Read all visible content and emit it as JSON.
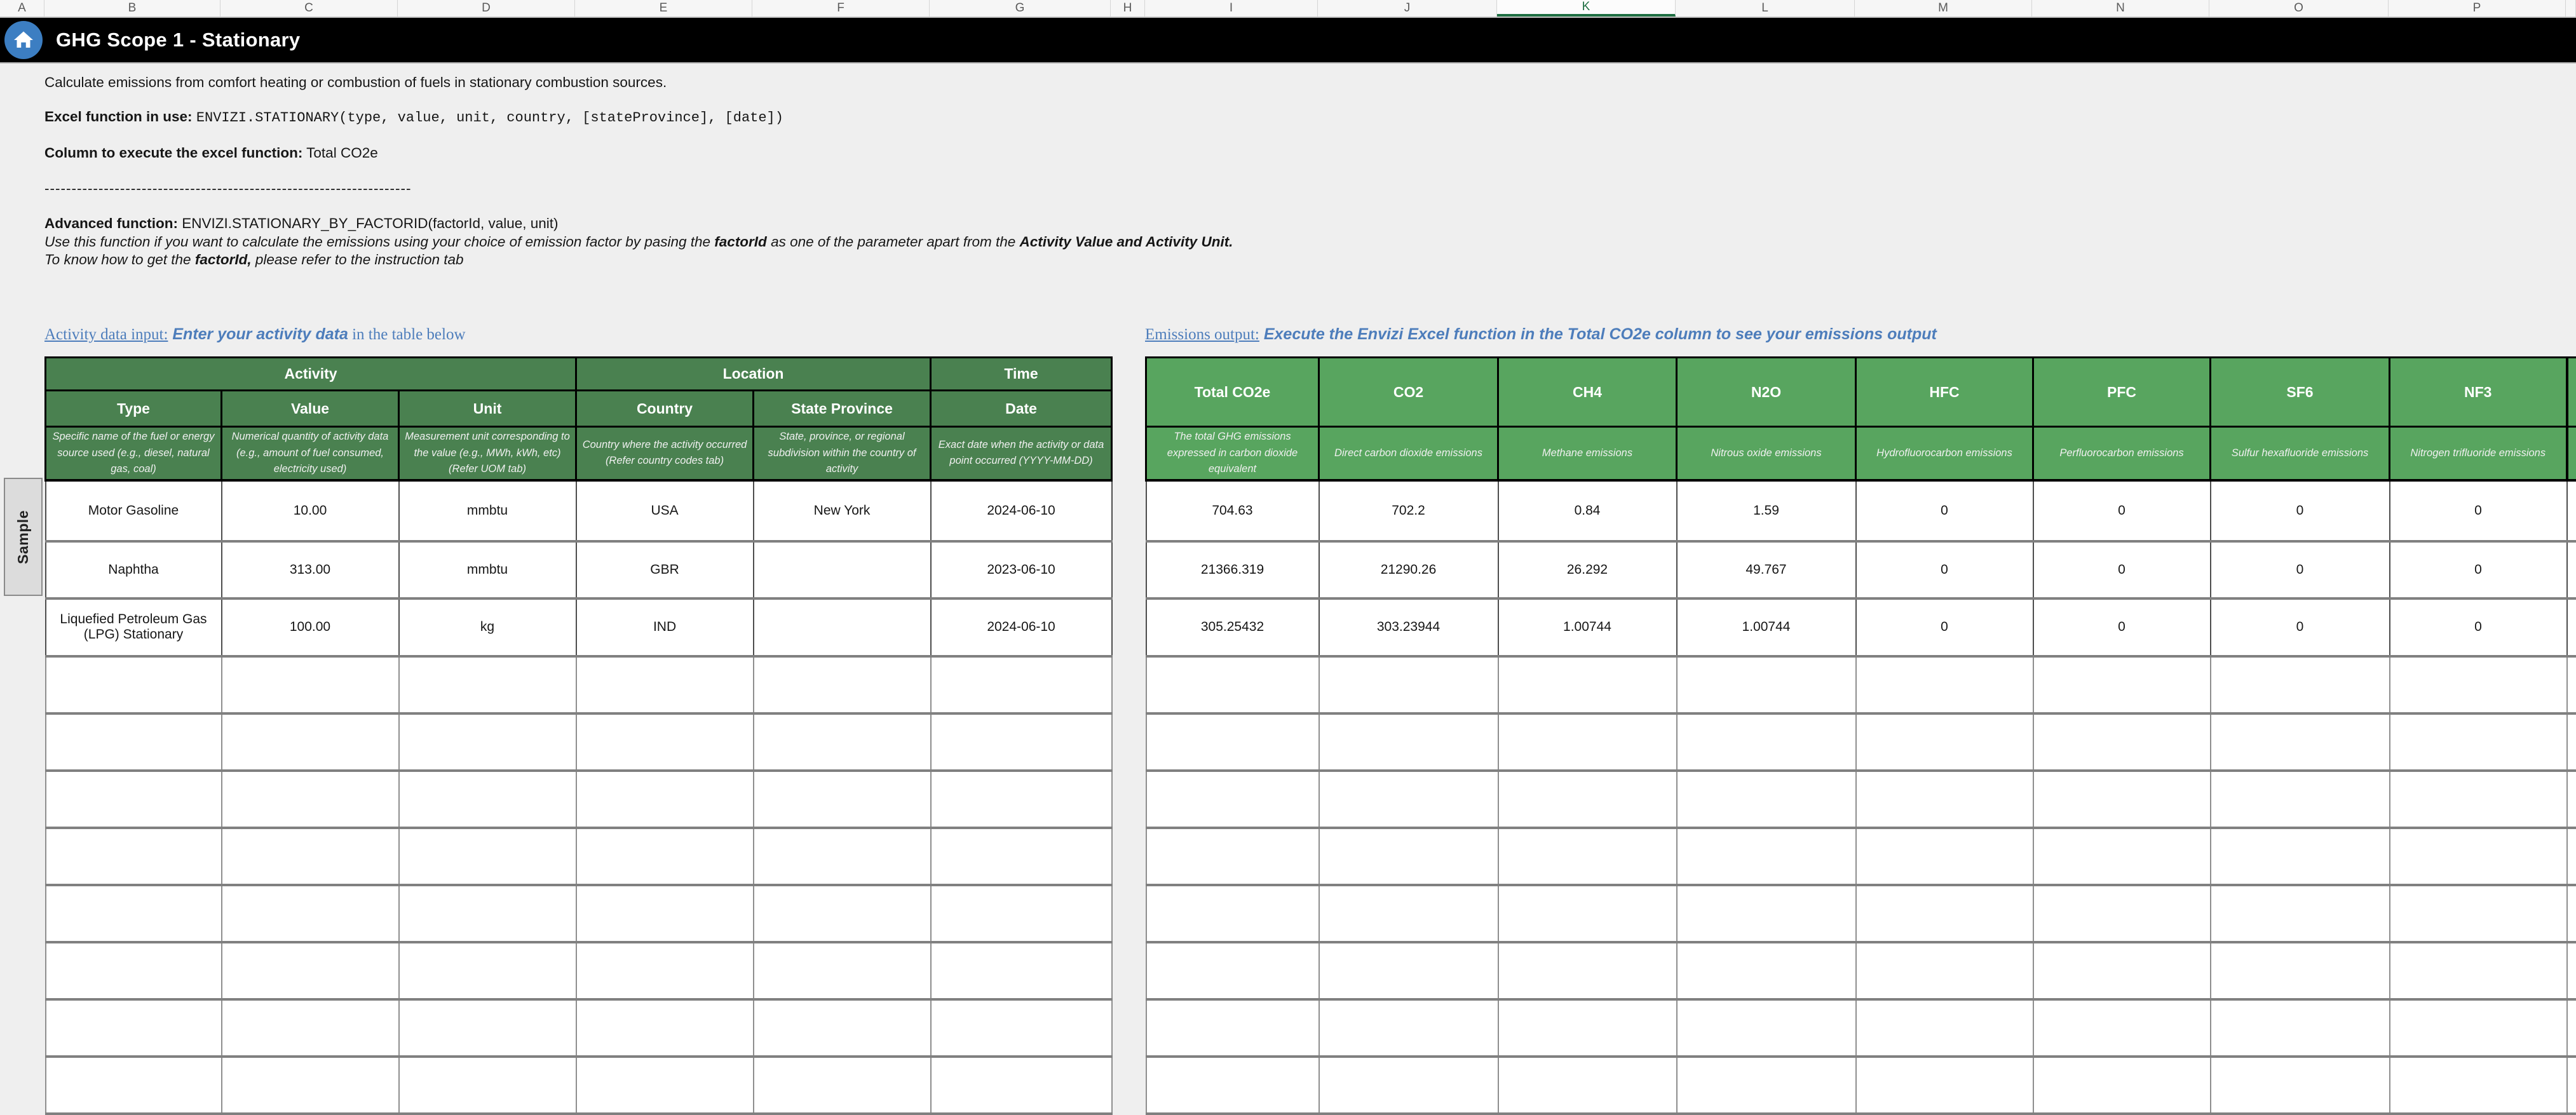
{
  "app": {
    "title": "GHG Scope 1 - Stationary"
  },
  "icons": {
    "home": "home-icon"
  },
  "colors": {
    "title_bar": "#000000",
    "home_icon_blue": "#3c7ec2",
    "activity_header_green": "#4a8150",
    "emissions_header_green": "#58a55f",
    "accent_blue": "#4d7dbb",
    "selected_column_green": "#1e6f42"
  },
  "column_strip": {
    "letters": [
      "A",
      "B",
      "C",
      "D",
      "E",
      "F",
      "G",
      "H",
      "I",
      "J",
      "K",
      "L",
      "M",
      "N",
      "O",
      "P"
    ],
    "selected_letter": "K"
  },
  "intro": {
    "line1": "Calculate emissions from comfort heating or combustion of fuels in stationary combustion sources.",
    "fn_label": "Excel function in use:",
    "fn_code": "ENVIZI.STATIONARY(type, value, unit, country, [stateProvince], [date])",
    "col_label": "Column to execute the excel function:",
    "col_value": "Total CO2e",
    "divider": "--------------------------------------------------------------------",
    "adv_label": "Advanced function:",
    "adv_code": "ENVIZI.STATIONARY_BY_FACTORID(factorId, value, unit)",
    "note1_a": "Use this function if you want to calculate the emissions using your choice of emission factor by pasing the ",
    "note1_b": "factorId",
    "note1_c": " as one of the parameter apart from the ",
    "note1_d": "Activity Value and Activity Unit.",
    "note2_a": "To know how to get the ",
    "note2_b": "factorId,",
    "note2_c": " please refer to the instruction tab"
  },
  "activity_section": {
    "title": "Activity data input:",
    "subtitle_em": "Enter your activity data",
    "subtitle_tail": " in the table below",
    "group_headers": [
      {
        "label": "Activity"
      },
      {
        "label": "Location"
      },
      {
        "label": "Time"
      }
    ],
    "columns": [
      {
        "name": "Type",
        "desc": "Specific name of the fuel or energy source used (e.g., diesel, natural gas, coal)"
      },
      {
        "name": "Value",
        "desc": "Numerical quantity of activity data (e.g., amount of fuel consumed, electricity used)"
      },
      {
        "name": "Unit",
        "desc": "Measurement unit corresponding to the value (e.g., MWh, kWh, etc) (Refer UOM  tab)"
      },
      {
        "name": "Country",
        "desc": "Country where the activity occurred (Refer country codes tab)"
      },
      {
        "name": "State Province",
        "desc": "State, province, or regional subdivision within the country of activity"
      },
      {
        "name": "Date",
        "desc": "Exact date when the activity or data point occurred (YYYY-MM-DD)"
      }
    ],
    "sample_label": "Sample",
    "rows": [
      [
        "Motor Gasoline",
        "10.00",
        "mmbtu",
        "USA",
        "New York",
        "2024-06-10"
      ],
      [
        "Naphtha",
        "313.00",
        "mmbtu",
        "GBR",
        "",
        "2023-06-10"
      ],
      [
        "Liquefied Petroleum Gas (LPG) Stationary",
        "100.00",
        "kg",
        "IND",
        "",
        "2024-06-10"
      ]
    ]
  },
  "emissions_section": {
    "title": "Emissions output:",
    "subtitle": "Execute the Envizi Excel function in the Total CO2e column to see your emissions output",
    "columns": [
      {
        "name": "Total CO2e",
        "desc": "The total GHG emissions expressed in carbon dioxide equivalent"
      },
      {
        "name": "CO2",
        "desc": "Direct carbon dioxide emissions"
      },
      {
        "name": "CH4",
        "desc": "Methane emissions"
      },
      {
        "name": "N2O",
        "desc": "Nitrous oxide emissions"
      },
      {
        "name": "HFC",
        "desc": "Hydrofluorocarbon emissions"
      },
      {
        "name": "PFC",
        "desc": "Perfluorocarbon emissions"
      },
      {
        "name": "SF6",
        "desc": "Sulfur hexafluoride emissions"
      },
      {
        "name": "NF3",
        "desc": "Nitrogen trifluoride emissions"
      }
    ],
    "rows": [
      [
        "704.63",
        "702.2",
        "0.84",
        "1.59",
        "0",
        "0",
        "0",
        "0"
      ],
      [
        "21366.319",
        "21290.26",
        "26.292",
        "49.767",
        "0",
        "0",
        "0",
        "0"
      ],
      [
        "305.25432",
        "303.23944",
        "1.00744",
        "1.00744",
        "0",
        "0",
        "0",
        "0"
      ]
    ]
  }
}
